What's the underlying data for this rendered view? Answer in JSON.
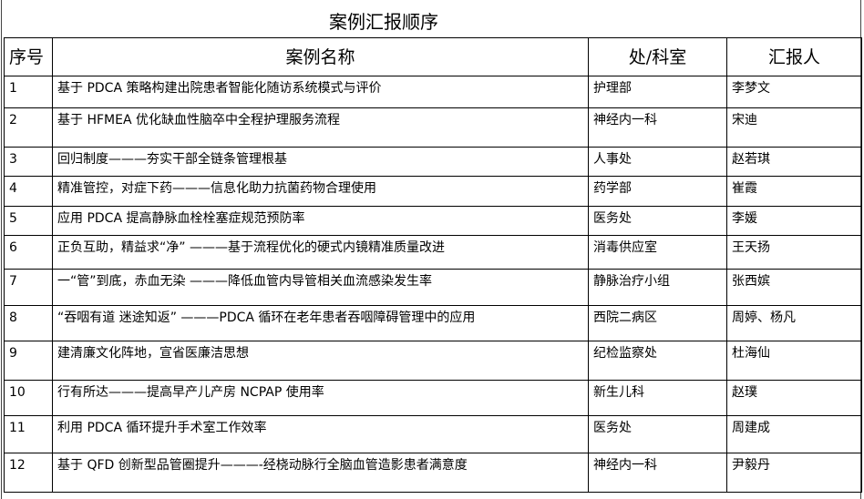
{
  "title": "案例汇报顺序",
  "headers": {
    "no": "序号",
    "name": "案例名称",
    "dept": "处/科室",
    "reporter": "汇报人"
  },
  "rows": [
    {
      "no": "1",
      "name": "基于 PDCA 策略构建出院患者智能化随访系统模式与评价",
      "dept": "护理部",
      "reporter": "李梦文"
    },
    {
      "no": "2",
      "name": "基于 HFMEA 优化缺血性脑卒中全程护理服务流程",
      "dept": "神经内一科",
      "reporter": "宋迪"
    },
    {
      "no": "3",
      "name": "回归制度———夯实干部全链条管理根基",
      "dept": "人事处",
      "reporter": "赵若琪"
    },
    {
      "no": "4",
      "name": "精准管控，对症下药———信息化助力抗菌药物合理使用",
      "dept": "药学部",
      "reporter": "崔霞"
    },
    {
      "no": "5",
      "name": "应用 PDCA 提高静脉血栓栓塞症规范预防率",
      "dept": "医务处",
      "reporter": "李媛"
    },
    {
      "no": "6",
      "name": "正负互助，精益求“净” ———基于流程优化的硬式内镜精准质量改进",
      "dept": "消毒供应室",
      "reporter": "王天扬"
    },
    {
      "no": "7",
      "name": "一“管”到底，赤血无染 ———降低血管内导管相关血流感染发生率",
      "dept": "静脉治疗小组",
      "reporter": "张西嫔"
    },
    {
      "no": "8",
      "name": "“吞咽有道 迷途知返” ———PDCA 循环在老年患者吞咽障碍管理中的应用",
      "dept": "西院二病区",
      "reporter": "周婷、杨凡"
    },
    {
      "no": "9",
      "name": "建清廉文化阵地，宣省医廉洁思想",
      "dept": "纪检监察处",
      "reporter": "杜海仙"
    },
    {
      "no": "10",
      "name": "行有所达———提高早产儿产房 NCPAP 使用率",
      "dept": "新生儿科",
      "reporter": "赵璞"
    },
    {
      "no": "11",
      "name": "利用 PDCA 循环提升手术室工作效率",
      "dept": "医务处",
      "reporter": "周建成"
    },
    {
      "no": "12",
      "name": "基于 QFD 创新型品管圈提升———-经桡动脉行全脑血管造影患者满意度",
      "dept": "神经内一科",
      "reporter": "尹毅丹"
    }
  ]
}
